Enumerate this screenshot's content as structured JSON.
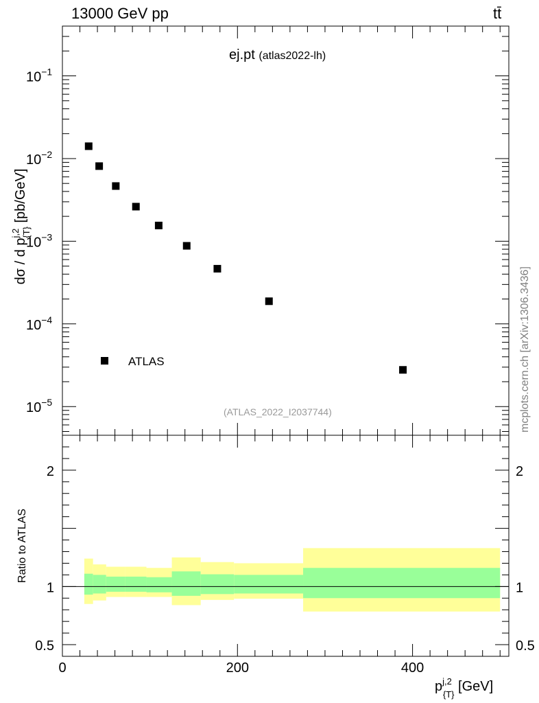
{
  "header": {
    "energy_label": "13000 GeV pp",
    "process_label": "tt̄"
  },
  "watermark": "mcplots.cern.ch [arXiv:1306.3436]",
  "chart_data": [
    {
      "type": "scatter",
      "title": "ej.pt",
      "subtitle": "(atlas2022-lh)",
      "reference": "(ATLAS_2022_I2037744)",
      "ylabel": "dσ / d p_{T}^{j,2} [pb/GeV]",
      "xlabel": "p_{T}^{j,2} [GeV]",
      "yscale": "log",
      "xlim": [
        0,
        510
      ],
      "ylim": [
        4.5e-06,
        0.4
      ],
      "ytick_values": [
        1e-05,
        0.0001,
        0.001,
        0.01,
        0.1
      ],
      "ytick_labels": [
        {
          "base": "10",
          "exp": "−5"
        },
        {
          "base": "10",
          "exp": "−4"
        },
        {
          "base": "10",
          "exp": "−3"
        },
        {
          "base": "10",
          "exp": "−2"
        },
        {
          "base": "10",
          "exp": "−1"
        }
      ],
      "legend": {
        "placement": "lower-left",
        "entries": [
          "ATLAS"
        ]
      },
      "series": [
        {
          "name": "ATLAS",
          "color": "#000000",
          "x": [
            30,
            42,
            61,
            84,
            110,
            142,
            177,
            236,
            389
          ],
          "y": [
            0.0141,
            0.0081,
            0.00465,
            0.00262,
            0.00155,
            0.00088,
            0.000465,
            0.000188,
            2.78e-05
          ]
        }
      ]
    },
    {
      "type": "area",
      "ylabel": "Ratio to ATLAS",
      "xlabel": "p_{T}^{j,2} [GeV]",
      "xlim": [
        0,
        510
      ],
      "ylim": [
        0.4,
        2.3
      ],
      "ytick_values": [
        0.5,
        1,
        2
      ],
      "ytick_labels": [
        "0.5",
        "1",
        "2"
      ],
      "xtick_values": [
        0,
        200,
        400
      ],
      "xtick_labels": [
        "0",
        "200",
        "400"
      ],
      "reference_line": 1,
      "bins": [
        {
          "x0": 25,
          "x1": 35,
          "inner": [
            0.93,
            1.11
          ],
          "outer": [
            0.85,
            1.24
          ]
        },
        {
          "x0": 35,
          "x1": 50,
          "inner": [
            0.94,
            1.1
          ],
          "outer": [
            0.88,
            1.19
          ]
        },
        {
          "x0": 50,
          "x1": 72,
          "inner": [
            0.955,
            1.085
          ],
          "outer": [
            0.91,
            1.17
          ]
        },
        {
          "x0": 72,
          "x1": 96,
          "inner": [
            0.955,
            1.085
          ],
          "outer": [
            0.91,
            1.17
          ]
        },
        {
          "x0": 96,
          "x1": 125,
          "inner": [
            0.95,
            1.08
          ],
          "outer": [
            0.91,
            1.16
          ]
        },
        {
          "x0": 125,
          "x1": 158,
          "inner": [
            0.92,
            1.13
          ],
          "outer": [
            0.84,
            1.25
          ]
        },
        {
          "x0": 158,
          "x1": 196,
          "inner": [
            0.935,
            1.105
          ],
          "outer": [
            0.885,
            1.21
          ]
        },
        {
          "x0": 196,
          "x1": 275,
          "inner": [
            0.94,
            1.1
          ],
          "outer": [
            0.895,
            1.2
          ]
        },
        {
          "x0": 275,
          "x1": 500,
          "inner": [
            0.9,
            1.16
          ],
          "outer": [
            0.785,
            1.33
          ]
        }
      ],
      "inner_color": "#99ff99",
      "outer_color": "#ffff99"
    }
  ]
}
